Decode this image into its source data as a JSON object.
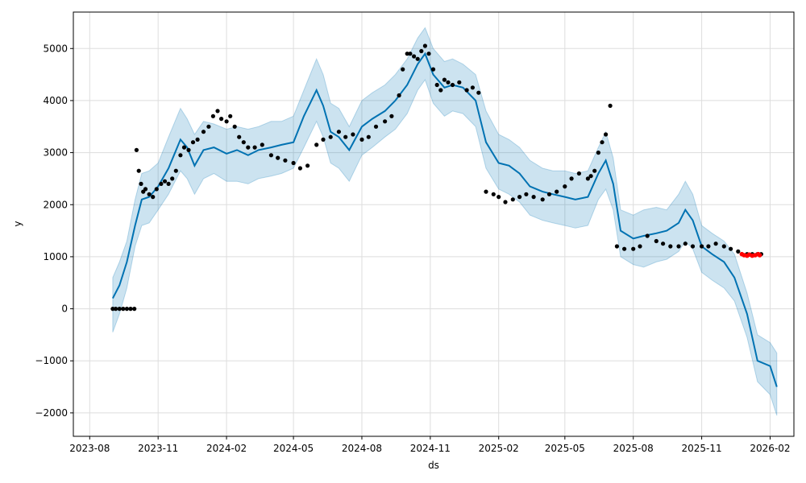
{
  "chart_data": {
    "type": "line",
    "title": "",
    "xlabel": "ds",
    "ylabel": "y",
    "grid": true,
    "x_ticks": [
      "2023-08",
      "2023-11",
      "2024-02",
      "2024-05",
      "2024-08",
      "2024-11",
      "2025-02",
      "2025-05",
      "2025-08",
      "2025-11",
      "2026-02"
    ],
    "x_tick_dates": [
      "2023-08-01",
      "2023-11-01",
      "2024-02-01",
      "2024-05-01",
      "2024-08-01",
      "2024-11-01",
      "2025-02-01",
      "2025-05-01",
      "2025-08-01",
      "2025-11-01",
      "2026-02-01"
    ],
    "xlim": [
      "2023-07-10",
      "2026-03-05"
    ],
    "y_ticks": [
      -2000,
      -1000,
      0,
      1000,
      2000,
      3000,
      4000,
      5000
    ],
    "y_tick_labels": [
      "−2000",
      "−1000",
      "0",
      "1000",
      "2000",
      "3000",
      "4000",
      "5000"
    ],
    "ylim": [
      -2450,
      5700
    ],
    "colors": {
      "forecast": "#0072B2",
      "band": "#0072B2",
      "observed": "#000000",
      "recent": "#ff0000",
      "grid": "#dddddd"
    },
    "forecast": {
      "x": [
        "2023-09-01",
        "2023-09-10",
        "2023-09-20",
        "2023-10-01",
        "2023-10-10",
        "2023-10-20",
        "2023-11-01",
        "2023-11-15",
        "2023-12-01",
        "2023-12-10",
        "2023-12-20",
        "2024-01-01",
        "2024-01-15",
        "2024-02-01",
        "2024-02-15",
        "2024-03-01",
        "2024-03-15",
        "2024-04-01",
        "2024-04-15",
        "2024-05-01",
        "2024-05-15",
        "2024-06-01",
        "2024-06-10",
        "2024-06-20",
        "2024-07-01",
        "2024-07-15",
        "2024-08-01",
        "2024-08-15",
        "2024-09-01",
        "2024-09-15",
        "2024-10-01",
        "2024-10-15",
        "2024-10-25",
        "2024-11-05",
        "2024-11-20",
        "2024-12-01",
        "2024-12-15",
        "2025-01-01",
        "2025-01-15",
        "2025-02-01",
        "2025-02-15",
        "2025-03-01",
        "2025-03-15",
        "2025-04-01",
        "2025-04-15",
        "2025-05-01",
        "2025-05-15",
        "2025-06-01",
        "2025-06-15",
        "2025-06-25",
        "2025-07-05",
        "2025-07-15",
        "2025-08-01",
        "2025-08-15",
        "2025-09-01",
        "2025-09-15",
        "2025-10-01",
        "2025-10-10",
        "2025-10-20",
        "2025-11-01",
        "2025-11-15",
        "2025-12-01",
        "2025-12-15",
        "2026-01-01",
        "2026-01-15",
        "2026-02-01",
        "2026-02-10"
      ],
      "y": [
        200,
        450,
        900,
        1600,
        2100,
        2150,
        2350,
        2700,
        3250,
        3100,
        2750,
        3050,
        3100,
        2980,
        3050,
        2950,
        3050,
        3100,
        3150,
        3200,
        3700,
        4200,
        3900,
        3400,
        3300,
        3050,
        3500,
        3650,
        3800,
        4000,
        4300,
        4700,
        4900,
        4500,
        4250,
        4300,
        4250,
        4000,
        3200,
        2800,
        2750,
        2600,
        2350,
        2250,
        2200,
        2150,
        2100,
        2150,
        2600,
        2850,
        2400,
        1500,
        1350,
        1400,
        1450,
        1500,
        1650,
        1900,
        1700,
        1200,
        1050,
        900,
        600,
        -100,
        -1000,
        -1100,
        -1500
      ]
    },
    "band": {
      "upper": [
        600,
        900,
        1300,
        2100,
        2600,
        2650,
        2800,
        3300,
        3850,
        3650,
        3350,
        3600,
        3550,
        3450,
        3500,
        3450,
        3500,
        3600,
        3600,
        3700,
        4200,
        4800,
        4500,
        3950,
        3850,
        3500,
        4000,
        4150,
        4300,
        4500,
        4800,
        5200,
        5400,
        5000,
        4750,
        4800,
        4700,
        4500,
        3800,
        3350,
        3250,
        3100,
        2850,
        2700,
        2650,
        2650,
        2600,
        2650,
        3100,
        3400,
        2900,
        1900,
        1800,
        1900,
        1950,
        1900,
        2200,
        2450,
        2200,
        1600,
        1450,
        1300,
        1050,
        300,
        -500,
        -650,
        -850
      ],
      "lower": [
        -450,
        -100,
        400,
        1200,
        1600,
        1650,
        1900,
        2200,
        2650,
        2500,
        2200,
        2500,
        2600,
        2450,
        2450,
        2400,
        2500,
        2550,
        2600,
        2700,
        3100,
        3600,
        3300,
        2800,
        2700,
        2450,
        2950,
        3100,
        3300,
        3450,
        3750,
        4200,
        4400,
        3950,
        3700,
        3800,
        3750,
        3500,
        2700,
        2300,
        2200,
        2050,
        1800,
        1700,
        1650,
        1600,
        1550,
        1600,
        2100,
        2300,
        1900,
        1000,
        850,
        800,
        900,
        950,
        1100,
        1300,
        1150,
        700,
        550,
        400,
        150,
        -550,
        -1400,
        -1650,
        -2050
      ]
    },
    "observed": {
      "x": [
        "2023-09-01",
        "2023-09-05",
        "2023-09-10",
        "2023-09-15",
        "2023-09-20",
        "2023-09-25",
        "2023-09-30",
        "2023-10-03",
        "2023-10-06",
        "2023-10-09",
        "2023-10-12",
        "2023-10-15",
        "2023-10-20",
        "2023-10-25",
        "2023-10-30",
        "2023-11-05",
        "2023-11-10",
        "2023-11-15",
        "2023-11-20",
        "2023-11-25",
        "2023-12-01",
        "2023-12-06",
        "2023-12-12",
        "2023-12-18",
        "2023-12-24",
        "2024-01-01",
        "2024-01-08",
        "2024-01-14",
        "2024-01-20",
        "2024-01-25",
        "2024-02-01",
        "2024-02-06",
        "2024-02-12",
        "2024-02-18",
        "2024-02-24",
        "2024-03-01",
        "2024-03-10",
        "2024-03-20",
        "2024-04-01",
        "2024-04-10",
        "2024-04-20",
        "2024-05-01",
        "2024-05-10",
        "2024-05-20",
        "2024-06-01",
        "2024-06-10",
        "2024-06-20",
        "2024-07-01",
        "2024-07-10",
        "2024-07-20",
        "2024-08-01",
        "2024-08-10",
        "2024-08-20",
        "2024-09-01",
        "2024-09-10",
        "2024-09-20",
        "2024-09-25",
        "2024-10-01",
        "2024-10-05",
        "2024-10-10",
        "2024-10-15",
        "2024-10-20",
        "2024-10-25",
        "2024-10-30",
        "2024-11-05",
        "2024-11-10",
        "2024-11-15",
        "2024-11-20",
        "2024-11-25",
        "2024-12-01",
        "2024-12-10",
        "2024-12-20",
        "2024-12-28",
        "2025-01-05",
        "2025-01-15",
        "2025-01-25",
        "2025-02-01",
        "2025-02-10",
        "2025-02-20",
        "2025-03-01",
        "2025-03-10",
        "2025-03-20",
        "2025-04-01",
        "2025-04-10",
        "2025-04-20",
        "2025-05-01",
        "2025-05-10",
        "2025-05-20",
        "2025-06-01",
        "2025-06-05",
        "2025-06-10",
        "2025-06-15",
        "2025-06-20",
        "2025-06-25",
        "2025-07-01",
        "2025-07-10",
        "2025-07-20",
        "2025-08-01",
        "2025-08-10",
        "2025-08-20",
        "2025-09-01",
        "2025-09-10",
        "2025-09-20",
        "2025-10-01",
        "2025-10-10",
        "2025-10-20",
        "2025-11-01",
        "2025-11-10",
        "2025-11-20",
        "2025-12-01",
        "2025-12-10",
        "2025-12-20",
        "2026-01-01",
        "2026-01-08",
        "2026-01-15",
        "2026-01-20"
      ],
      "y": [
        0,
        0,
        0,
        0,
        0,
        0,
        0,
        3050,
        2650,
        2400,
        2250,
        2300,
        2200,
        2150,
        2300,
        2400,
        2450,
        2400,
        2500,
        2650,
        2950,
        3100,
        3050,
        3200,
        3250,
        3400,
        3500,
        3700,
        3800,
        3650,
        3600,
        3700,
        3500,
        3300,
        3200,
        3100,
        3100,
        3150,
        2950,
        2900,
        2850,
        2800,
        2700,
        2750,
        3150,
        3250,
        3300,
        3400,
        3300,
        3350,
        3250,
        3300,
        3500,
        3600,
        3700,
        4100,
        4600,
        4900,
        4900,
        4850,
        4800,
        4950,
        5050,
        4900,
        4600,
        4300,
        4200,
        4400,
        4350,
        4300,
        4350,
        4200,
        4250,
        4150,
        2250,
        2200,
        2150,
        2050,
        2100,
        2150,
        2200,
        2150,
        2100,
        2200,
        2250,
        2350,
        2500,
        2600,
        2500,
        2550,
        2650,
        3000,
        3200,
        3350,
        3900,
        1200,
        1150,
        1150,
        1200,
        1400,
        1300,
        1250,
        1200,
        1200,
        1250,
        1200,
        1200,
        1200,
        1250,
        1200,
        1150,
        1100,
        1050,
        1050,
        1050,
        1050
      ],
      "recent_x": [
        "2025-12-25",
        "2025-12-28",
        "2026-01-01",
        "2026-01-04",
        "2026-01-08",
        "2026-01-12",
        "2026-01-16",
        "2026-01-18"
      ],
      "recent_y": [
        1050,
        1030,
        1020,
        1040,
        1020,
        1030,
        1050,
        1030
      ]
    }
  }
}
